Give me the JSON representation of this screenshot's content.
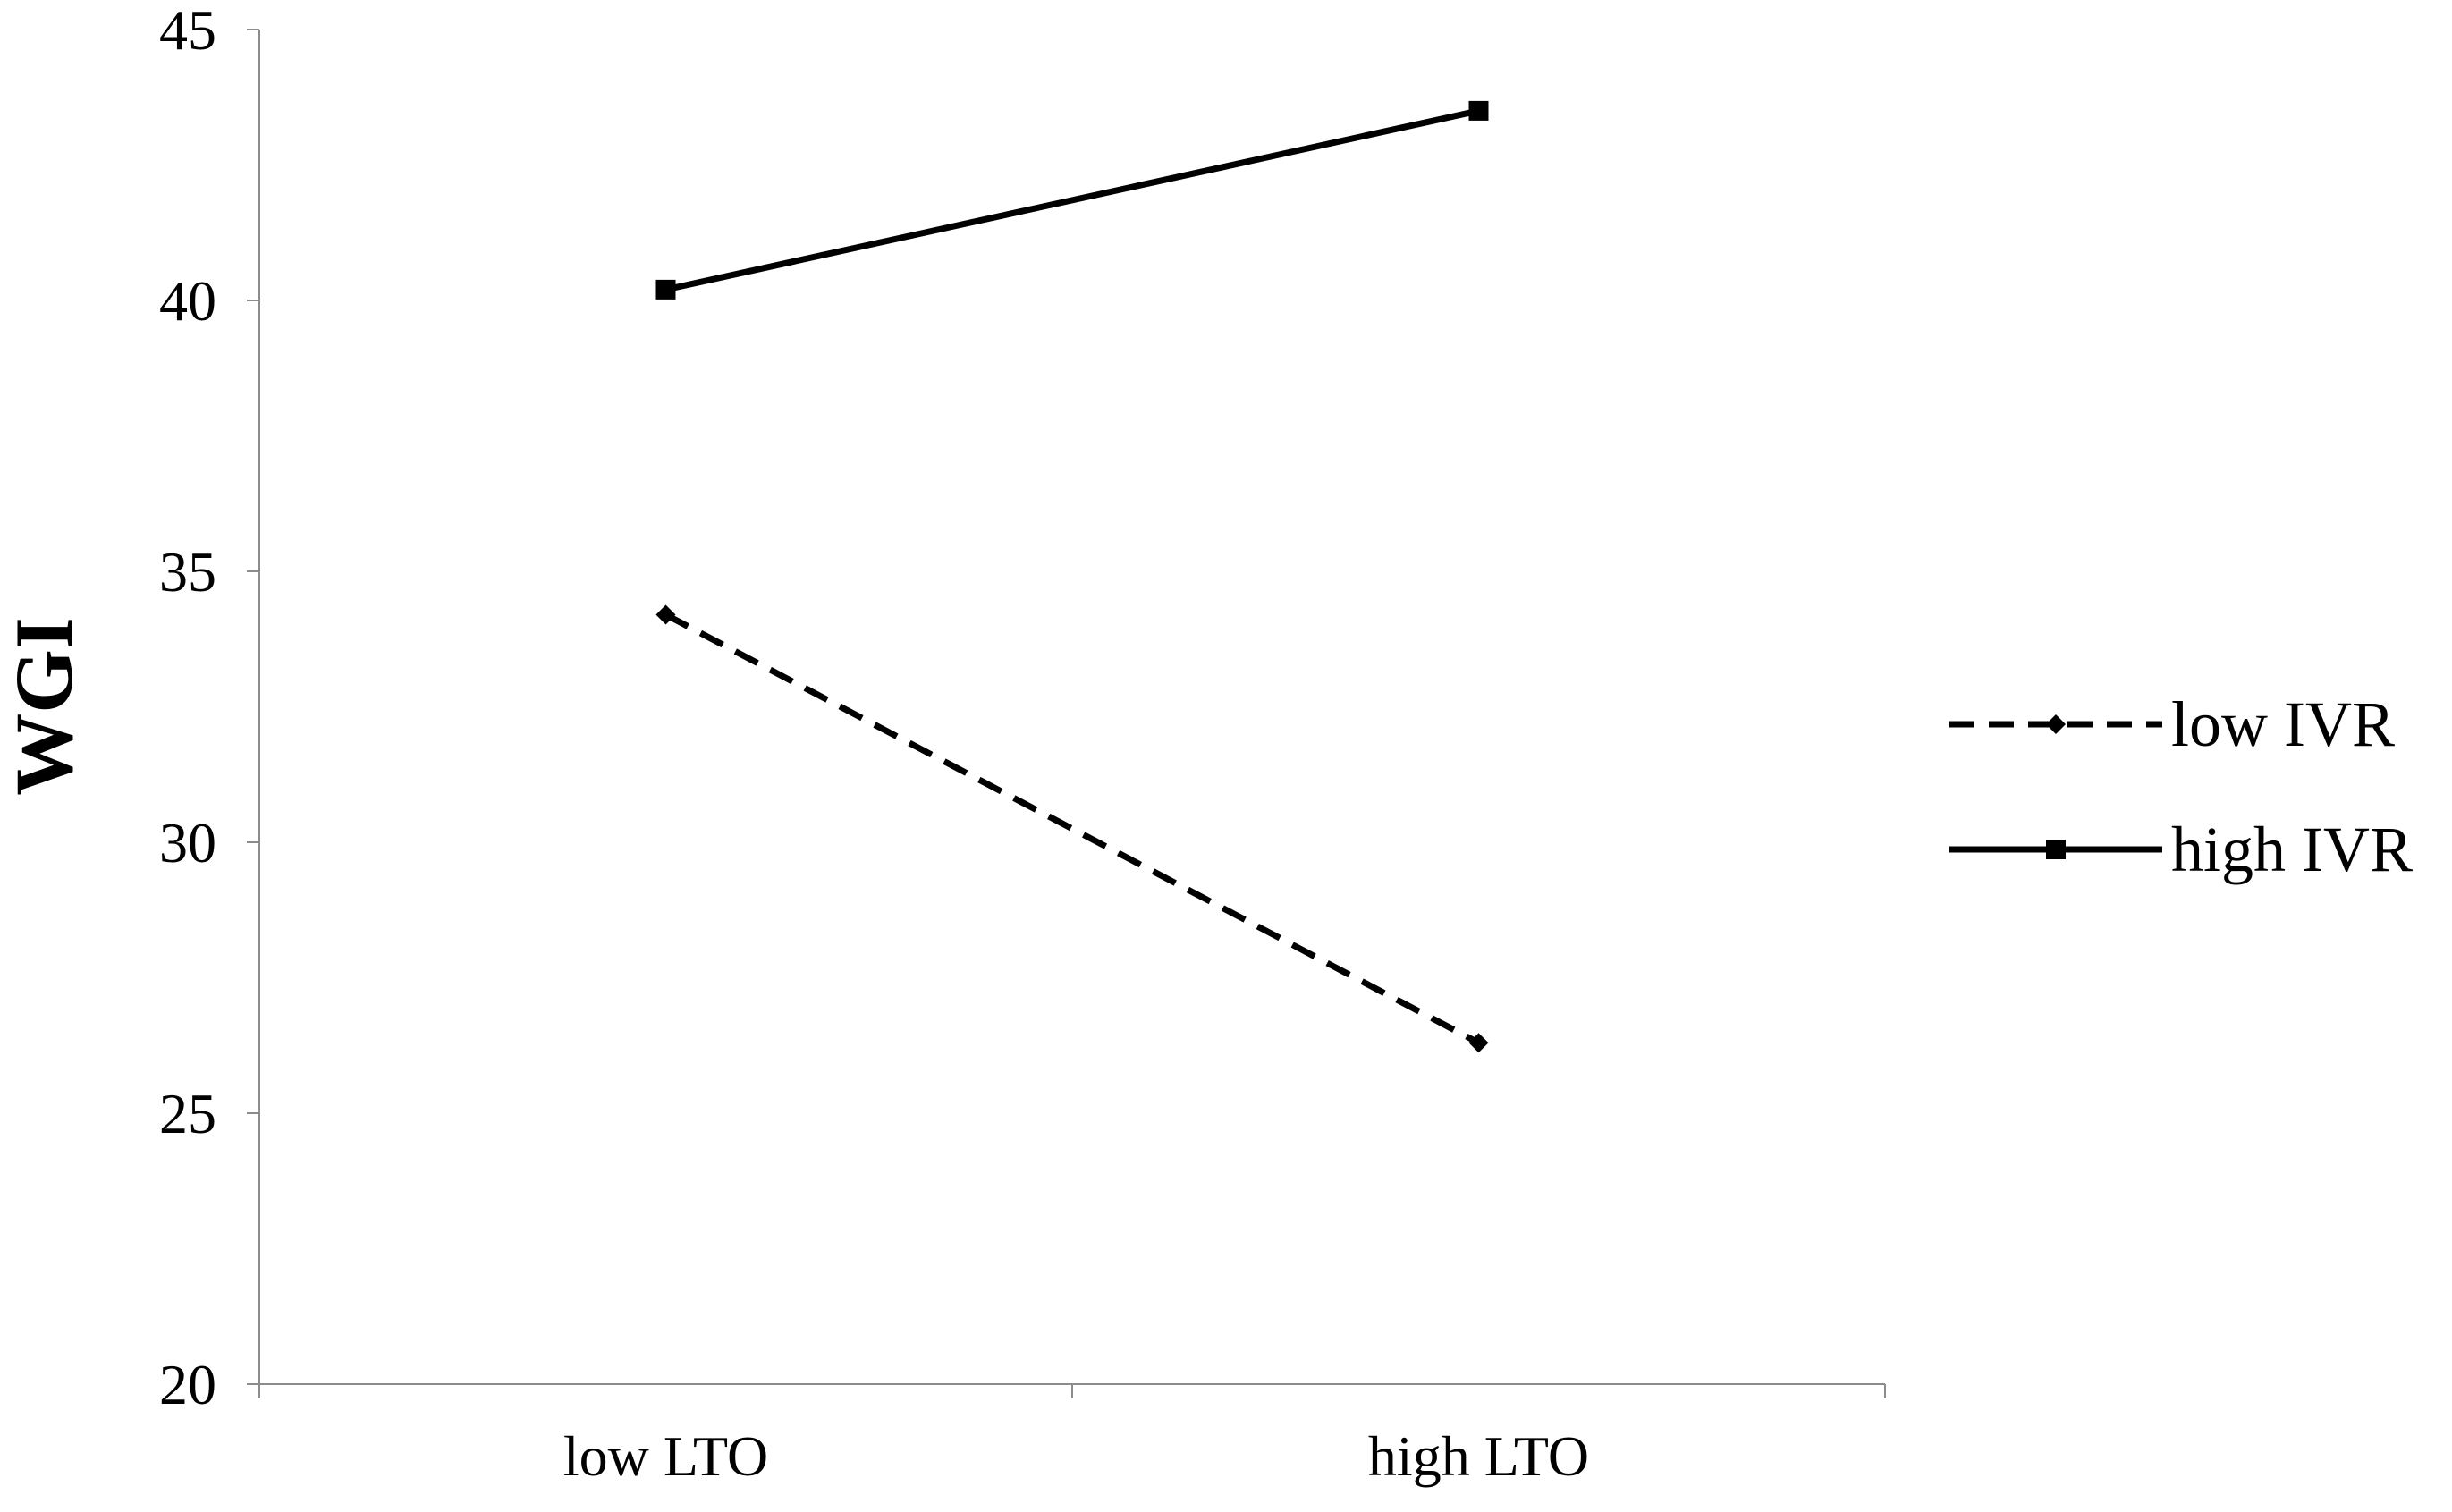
{
  "chart_data": {
    "type": "line",
    "categories": [
      "low LTO",
      "high LTO"
    ],
    "series": [
      {
        "name": "low IVR",
        "values": [
          34.2,
          26.3
        ],
        "style": "dashed",
        "marker": "diamond",
        "color": "#000000"
      },
      {
        "name": "high IVR",
        "values": [
          40.2,
          43.5
        ],
        "style": "solid",
        "marker": "square",
        "color": "#000000"
      }
    ],
    "title": "",
    "xlabel": "",
    "ylabel": "WGI",
    "ylim": [
      20,
      45
    ],
    "yticks": [
      20,
      25,
      30,
      35,
      40,
      45
    ],
    "grid": false,
    "legend": "right"
  }
}
